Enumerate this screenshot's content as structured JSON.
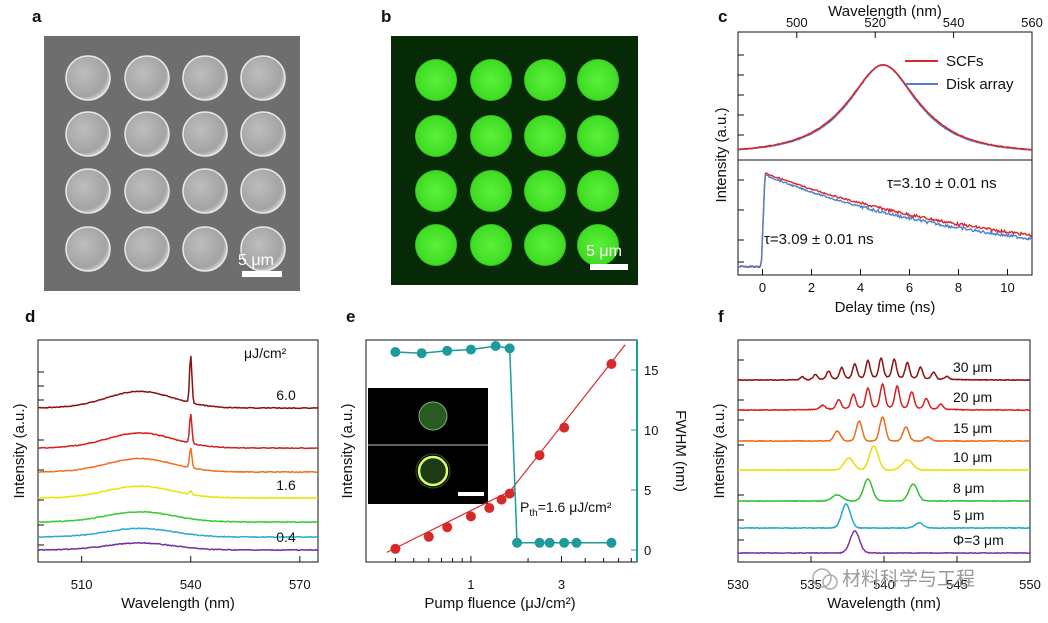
{
  "panel_labels": [
    "a",
    "b",
    "c",
    "d",
    "e",
    "f"
  ],
  "watermark": "材料科学与工程",
  "colors": {
    "red": "#d62a2a",
    "blue": "#4f7fd0",
    "teal": "#1e9a9a",
    "sem_bg": "#6e6e6e",
    "fl_bg": "#062906",
    "green": "#44e028"
  },
  "panel_a": {
    "scalebar": "5 μm"
  },
  "panel_b": {
    "scalebar": "5 μm"
  },
  "panel_c": {
    "top": {
      "xlabel": "Wavelength (nm)",
      "xticks": [
        500,
        520,
        540,
        560
      ],
      "xlim": [
        485,
        560
      ],
      "legend": [
        "SCFs",
        "Disk array"
      ],
      "peak_nm": 522,
      "fwhm_nm": 20
    },
    "bottom": {
      "xlabel": "Delay time (ns)",
      "xticks": [
        0,
        2,
        4,
        6,
        8,
        10
      ],
      "xlim": [
        -1,
        11
      ],
      "tau_scf": "τ=3.10 ± 0.01 ns",
      "tau_disk": "τ=3.09 ± 0.01 ns"
    },
    "ylabel": "Intensity (a.u.)"
  },
  "chart_data": [
    {
      "type": "line",
      "panel": "d",
      "xlabel": "Wavelength (nm)",
      "ylabel": "Intensity (a.u.)",
      "xticks": [
        510,
        540,
        570
      ],
      "xlim": [
        498,
        575
      ],
      "unit_label": "μJ/cm²",
      "broad_peak_nm": 526,
      "lasing_peak_nm": 540,
      "series": [
        {
          "color": "#7030a0",
          "lasing_amp": 0
        },
        {
          "color": "#2aaad8",
          "lasing_amp": 0
        },
        {
          "color": "#33cc33",
          "lasing_amp": 0
        },
        {
          "color": "#e6e600",
          "lasing_amp": 0.07
        },
        {
          "color": "#f07020",
          "lasing_amp": 0.42
        },
        {
          "color": "#d62020",
          "lasing_amp": 0.62
        },
        {
          "color": "#8b1010",
          "lasing_amp": 1.0
        }
      ],
      "curve_labels": [
        {
          "text": "0.4",
          "series_index": 0
        },
        {
          "text": "1.6",
          "series_index": 3
        },
        {
          "text": "6.0",
          "series_index": 6
        }
      ]
    },
    {
      "type": "scatter",
      "panel": "e",
      "xlabel": "Pump fluence (μJ/cm²)",
      "ylabel_left": "Intensity (a.u.)",
      "ylabel_right": "FWHM (nm)",
      "xscale": "log",
      "xticks": [
        1,
        3
      ],
      "xlim": [
        0.28,
        7.5
      ],
      "yright_ticks": [
        0,
        5,
        10,
        15
      ],
      "yright_lim": [
        -1,
        17.5
      ],
      "intensity_series": {
        "x": [
          0.4,
          0.6,
          0.75,
          1.0,
          1.25,
          1.45,
          1.6,
          2.3,
          3.1,
          5.5
        ],
        "y": [
          0.06,
          0.16,
          0.24,
          0.33,
          0.4,
          0.47,
          0.52,
          0.84,
          1.07,
          1.6
        ]
      },
      "fwhm_series": {
        "x": [
          0.4,
          0.55,
          0.75,
          1.0,
          1.35,
          1.6,
          1.75,
          2.3,
          2.6,
          3.1,
          3.6,
          5.5
        ],
        "y": [
          16.5,
          16.4,
          16.6,
          16.7,
          17.0,
          16.8,
          0.6,
          0.6,
          0.6,
          0.6,
          0.6,
          0.6
        ]
      },
      "threshold_label": "P",
      "threshold_sub": "th",
      "threshold_value": "=1.6 μJ/cm²"
    },
    {
      "type": "line",
      "panel": "f",
      "xlabel": "Wavelength (nm)",
      "ylabel": "Intensity (a.u.)",
      "xticks": [
        530,
        535,
        540,
        545,
        550
      ],
      "xlim": [
        530,
        550
      ],
      "series": [
        {
          "name": "Φ=3 μm",
          "color": "#8030a8"
        },
        {
          "name": "5 μm",
          "color": "#20a8d0"
        },
        {
          "name": "8 μm",
          "color": "#30c030"
        },
        {
          "name": "10 μm",
          "color": "#e8e000"
        },
        {
          "name": "15 μm",
          "color": "#ee6a18"
        },
        {
          "name": "20 μm",
          "color": "#d82020"
        },
        {
          "name": "30 μm",
          "color": "#8a1212"
        }
      ]
    }
  ]
}
